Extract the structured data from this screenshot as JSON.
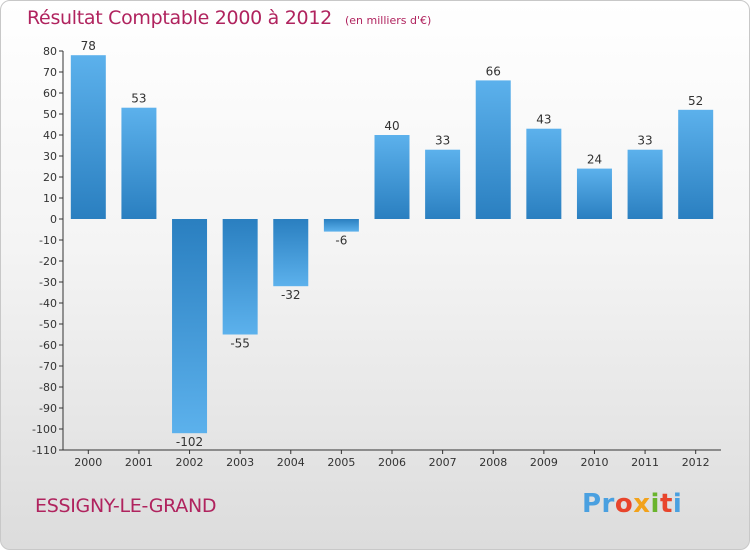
{
  "chart_data": {
    "type": "bar",
    "title": "Résultat Comptable 2000 à 2012",
    "subtitle": "(en milliers d'€)",
    "categories": [
      "2000",
      "2001",
      "2002",
      "2003",
      "2004",
      "2005",
      "2006",
      "2007",
      "2008",
      "2009",
      "2010",
      "2011",
      "2012"
    ],
    "values": [
      78,
      53,
      -102,
      -55,
      -32,
      -6,
      40,
      33,
      66,
      43,
      24,
      33,
      52
    ],
    "value_labels": [
      "78",
      "53",
      "-102",
      "-55",
      "-32",
      "-6",
      "40",
      "33",
      "66",
      "43",
      "24",
      "33",
      "52"
    ],
    "ylim": [
      -110,
      80
    ],
    "yticks": [
      80,
      70,
      60,
      50,
      40,
      30,
      20,
      10,
      0,
      -10,
      -20,
      -30,
      -40,
      -50,
      -60,
      -70,
      -80,
      -90,
      -100,
      -110
    ],
    "xlabel": "",
    "ylabel": "",
    "grid": false
  },
  "footer": {
    "commune": "ESSIGNY-LE-GRAND",
    "logo": {
      "p1": "Pr",
      "p2": "o",
      "p3": "x",
      "p4": "i",
      "p5": "t",
      "p6": "i"
    }
  },
  "colors": {
    "title": "#b0235e",
    "bar_light": "#5cb1ec",
    "bar_dark": "#2a7fc0",
    "axis": "#333333"
  }
}
